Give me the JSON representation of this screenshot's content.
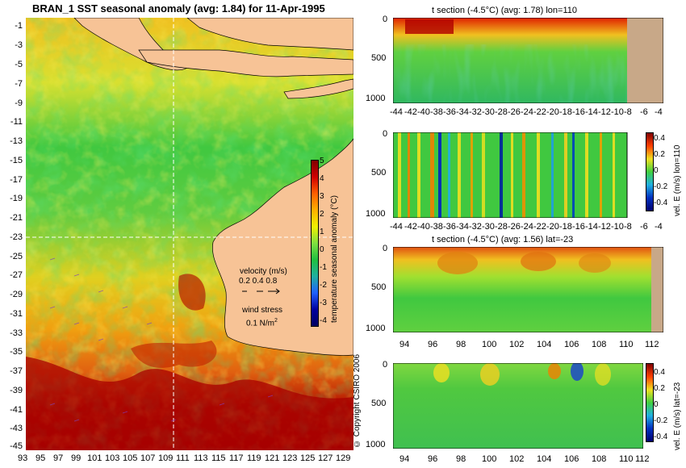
{
  "main_map": {
    "title": "BRAN_1 SST seasonal anomaly (avg: 1.84) for 11-Apr-1995",
    "lat_ticks": [
      "-1",
      "-3",
      "-5",
      "-7",
      "-9",
      "-11",
      "-13",
      "-15",
      "-17",
      "-19",
      "-21",
      "-23",
      "-25",
      "-27",
      "-29",
      "-31",
      "-33",
      "-35",
      "-37",
      "-39",
      "-41",
      "-43",
      "-45"
    ],
    "lon_ticks": [
      "93",
      "95",
      "97",
      "99",
      "101",
      "103",
      "105",
      "107",
      "109",
      "111",
      "113",
      "115",
      "117",
      "119",
      "121",
      "123",
      "125",
      "127",
      "129"
    ],
    "colorbar": {
      "label": "temperature seasonal anomaly (°C)",
      "ticks": [
        "5",
        "4",
        "3",
        "2",
        "1",
        "0",
        "-1",
        "-2",
        "-3",
        "-4"
      ]
    },
    "legend": {
      "velocity_label": "velocity (m/s)",
      "velocity_scale": "0.2 0.4 0.8",
      "wind_label": "wind stress",
      "wind_scale": "0.1 N/m",
      "wind_sup": "2"
    },
    "copyright": "© Copyright CSIRO 2006"
  },
  "panels": [
    {
      "title": "t section (-4.5°C) (avg: 1.78) lon=110",
      "y_ticks": [
        "0",
        "500",
        "1000"
      ],
      "x_ticks": [
        "-44",
        "-42",
        "-40",
        "-38",
        "-36",
        "-34",
        "-32",
        "-30",
        "-28",
        "-26",
        "-24",
        "-22",
        "-20",
        "-18",
        "-16",
        "-14",
        "-12",
        "-10",
        "-8",
        "-6",
        "-4"
      ]
    },
    {
      "title": "",
      "y_ticks": [
        "0",
        "500",
        "1000"
      ],
      "x_ticks": [
        "-44",
        "-42",
        "-40",
        "-38",
        "-36",
        "-34",
        "-32",
        "-30",
        "-28",
        "-26",
        "-24",
        "-22",
        "-20",
        "-18",
        "-16",
        "-14",
        "-12",
        "-10",
        "-8",
        "-6",
        "-4"
      ],
      "colorbar_label": "vel. E (m/s) lon=110",
      "colorbar_ticks": [
        "0.4",
        "0.2",
        "0",
        "-0.2",
        "-0.4"
      ]
    },
    {
      "title": "t section (-4.5°C) (avg: 1.56) lat=-23",
      "y_ticks": [
        "0",
        "500",
        "1000"
      ],
      "x_ticks": [
        "94",
        "96",
        "98",
        "100",
        "102",
        "104",
        "106",
        "108",
        "110",
        "112"
      ]
    },
    {
      "title": "",
      "y_ticks": [
        "0",
        "500",
        "1000"
      ],
      "x_ticks": [
        "94",
        "96",
        "98",
        "100",
        "102",
        "104",
        "106",
        "108",
        "110",
        "112"
      ],
      "colorbar_label": "vel. E (m/s) lat=-23",
      "colorbar_ticks": [
        "0.4",
        "0.2",
        "0",
        "-0.2",
        "-0.4"
      ]
    }
  ],
  "colors": {
    "land": "#f7c396",
    "land_section": "#c8a888",
    "ocean_green": "#3fc83f",
    "warm_red": "#b00000",
    "orange": "#ff8c00",
    "yellow": "#f0e020"
  }
}
